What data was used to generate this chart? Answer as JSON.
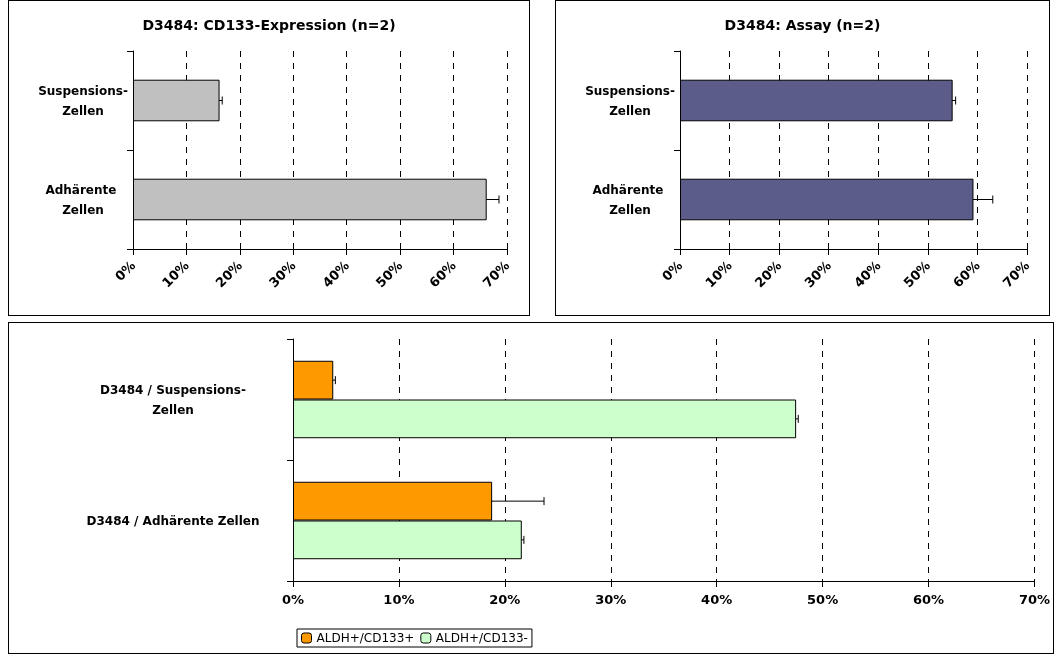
{
  "chart_data": [
    {
      "type": "bar",
      "orientation": "horizontal",
      "title": "D3484: CD133-Expression (n=2)",
      "categories": [
        "Suspensions-Zellen",
        "Adhärente Zellen"
      ],
      "values": [
        16.2,
        66.2
      ],
      "errors": [
        0.5,
        2.3
      ],
      "color": "#c0c0c0",
      "xlim": [
        0,
        70
      ],
      "xticks": [
        {
          "value": 0,
          "label": "0%"
        },
        {
          "value": 10,
          "label": "10%"
        },
        {
          "value": 20,
          "label": "20%"
        },
        {
          "value": 30,
          "label": "30%"
        },
        {
          "value": 40,
          "label": "40%"
        },
        {
          "value": 50,
          "label": "50%"
        },
        {
          "value": 60,
          "label": "60%"
        },
        {
          "value": 70,
          "label": "70%"
        }
      ],
      "grid": "x",
      "legend": false
    },
    {
      "type": "bar",
      "orientation": "horizontal",
      "title": "D3484: Assay (n=2)",
      "categories": [
        "Suspensions-Zellen",
        "Adhärente Zellen"
      ],
      "values": [
        55.0,
        59.2
      ],
      "errors": [
        0.6,
        3.9
      ],
      "color": "#5c5c8a",
      "xlim": [
        0,
        70
      ],
      "xticks": [
        {
          "value": 0,
          "label": "0%"
        },
        {
          "value": 10,
          "label": "10%"
        },
        {
          "value": 20,
          "label": "20%"
        },
        {
          "value": 30,
          "label": "30%"
        },
        {
          "value": 40,
          "label": "40%"
        },
        {
          "value": 50,
          "label": "50%"
        },
        {
          "value": 60,
          "label": "60%"
        },
        {
          "value": 70,
          "label": "70%"
        }
      ],
      "grid": "x",
      "legend": false
    },
    {
      "type": "bar",
      "orientation": "horizontal",
      "categories": [
        "D3484 / Suspensions-Zellen",
        "D3484 / Adhärente Zellen"
      ],
      "series": [
        {
          "name": "ALDH+/CD133+",
          "color": "#ff9900",
          "values": [
            3.8,
            18.8
          ],
          "errors": [
            0.2,
            4.9
          ]
        },
        {
          "name": "ALDH+/CD133-",
          "color": "#ccffcc",
          "values": [
            47.5,
            21.6
          ],
          "errors": [
            0.2,
            0.2
          ]
        }
      ],
      "xlim": [
        0,
        70
      ],
      "xticks": [
        {
          "value": 0,
          "label": "0%"
        },
        {
          "value": 10,
          "label": "10%"
        },
        {
          "value": 20,
          "label": "20%"
        },
        {
          "value": 30,
          "label": "30%"
        },
        {
          "value": 40,
          "label": "40%"
        },
        {
          "value": 50,
          "label": "50%"
        },
        {
          "value": 60,
          "label": "60%"
        },
        {
          "value": 70,
          "label": "70%"
        }
      ],
      "grid": "x",
      "legend": "bottom"
    }
  ]
}
